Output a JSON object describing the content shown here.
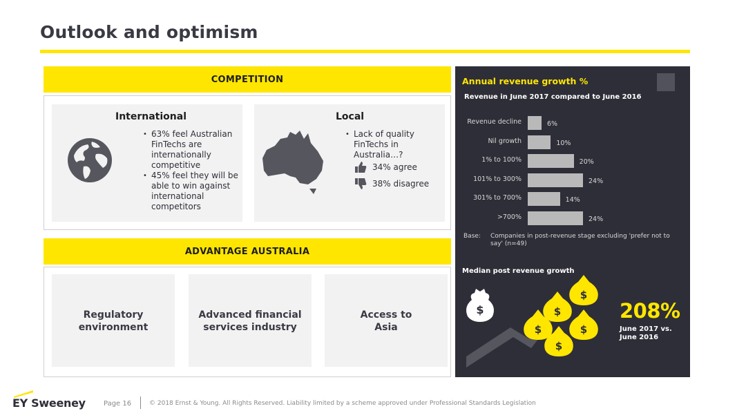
{
  "slide": {
    "title": "Outlook and optimism"
  },
  "competition": {
    "header": "COMPETITION",
    "international": {
      "heading": "International",
      "bullets": [
        "63% feel Australian FinTechs are internationally competitive",
        "45% feel they will be able to win against international competitors"
      ]
    },
    "local": {
      "heading": "Local",
      "bullets": [
        "Lack of quality FinTechs in Australia…?"
      ],
      "agree": "34% agree",
      "disagree": "38% disagree"
    }
  },
  "advantage": {
    "header": "ADVANTAGE AUSTRALIA",
    "items": [
      "Regulatory environment",
      "Advanced financial services industry",
      "Access to Asia"
    ]
  },
  "growth_panel": {
    "title": "Annual revenue growth %",
    "subtitle": "Revenue in June 2017 compared to June 2016",
    "base_label": "Base:",
    "base_text": "Companies in post-revenue stage excluding 'prefer not to say' (n=49)",
    "median_title": "Median post revenue growth",
    "median_value": "208%",
    "median_caption": "June 2017 vs. June 2016",
    "colors": {
      "accent": "#ffe600",
      "panel": "#2e2e38",
      "bar": "#b9b9b9"
    }
  },
  "chart_data": {
    "type": "bar",
    "orientation": "horizontal",
    "title": "Annual revenue growth %",
    "subtitle": "Revenue in June 2017 compared to June 2016",
    "categories": [
      "Revenue decline",
      "Nil growth",
      "1% to 100%",
      "101% to 300%",
      "301% to 700%",
      ">700%"
    ],
    "values": [
      6,
      10,
      20,
      24,
      14,
      24
    ],
    "value_labels": [
      "6%",
      "10%",
      "20%",
      "24%",
      "14%",
      "24%"
    ],
    "xlim": [
      0,
      24
    ],
    "grid": false,
    "legend": "none"
  },
  "footer": {
    "logo": "EY Sweeney",
    "page": "Page 16",
    "copyright": "© 2018 Ernst & Young. All Rights Reserved. Liability limited by a scheme approved under Professional Standards Legislation"
  }
}
